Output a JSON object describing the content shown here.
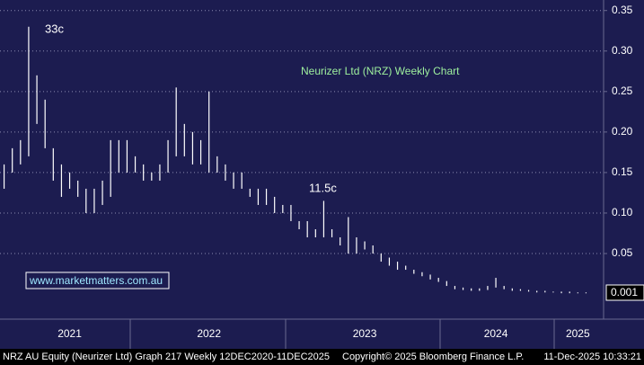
{
  "chart_data": {
    "type": "ohlc",
    "title": "Neurizer Ltd (NRZ) Weekly Chart",
    "annotations": [
      "33c",
      "11.5c"
    ],
    "watermark": "www.marketmatters.com.au",
    "last_price_label": "0.001",
    "footer_left": "NRZ AU Equity (Neurizer Ltd) Graph 217 Weekly 12DEC2020-11DEC2025",
    "footer_mid": "Copyright© 2025 Bloomberg Finance L.P.",
    "footer_right": "11-Dec-2025 10:33:21",
    "categories": [
      null,
      null,
      null,
      null,
      null,
      null,
      null,
      null,
      "2021",
      null,
      null,
      null,
      null,
      null,
      null,
      null,
      null,
      null,
      null,
      null,
      null,
      null,
      null,
      null,
      null,
      "2022",
      null,
      null,
      null,
      null,
      null,
      null,
      null,
      null,
      null,
      null,
      null,
      null,
      null,
      null,
      null,
      null,
      null,
      null,
      "2023",
      null,
      null,
      null,
      null,
      null,
      null,
      null,
      null,
      null,
      null,
      null,
      null,
      null,
      null,
      null,
      "2024",
      null,
      null,
      null,
      null,
      null,
      null,
      null,
      null,
      null,
      "2025",
      null
    ],
    "high": [
      0.16,
      0.18,
      0.19,
      0.33,
      0.27,
      0.24,
      0.18,
      0.16,
      0.15,
      0.14,
      0.13,
      0.13,
      0.14,
      0.19,
      0.19,
      0.19,
      0.17,
      0.16,
      0.15,
      0.16,
      0.19,
      0.255,
      0.21,
      0.2,
      0.19,
      0.25,
      0.17,
      0.16,
      0.15,
      0.15,
      0.13,
      0.13,
      0.13,
      0.12,
      0.11,
      0.11,
      0.09,
      0.09,
      0.08,
      0.115,
      0.08,
      0.07,
      0.095,
      0.07,
      0.065,
      0.06,
      0.05,
      0.045,
      0.04,
      0.035,
      0.03,
      0.027,
      0.024,
      0.02,
      0.016,
      0.01,
      0.008,
      0.007,
      0.007,
      0.01,
      0.02,
      0.01,
      0.007,
      0.006,
      0.005,
      0.004,
      0.004,
      0.003,
      0.003,
      0.003,
      0.002,
      0.002
    ],
    "low": [
      0.13,
      0.15,
      0.16,
      0.17,
      0.21,
      0.18,
      0.14,
      0.12,
      0.13,
      0.12,
      0.1,
      0.1,
      0.11,
      0.12,
      0.15,
      0.15,
      0.15,
      0.14,
      0.14,
      0.14,
      0.15,
      0.17,
      0.17,
      0.16,
      0.16,
      0.15,
      0.15,
      0.14,
      0.13,
      0.13,
      0.12,
      0.11,
      0.11,
      0.1,
      0.1,
      0.09,
      0.08,
      0.07,
      0.07,
      0.07,
      0.07,
      0.06,
      0.05,
      0.05,
      0.055,
      0.05,
      0.04,
      0.035,
      0.03,
      0.03,
      0.025,
      0.022,
      0.018,
      0.015,
      0.01,
      0.006,
      0.005,
      0.004,
      0.004,
      0.005,
      0.008,
      0.006,
      0.004,
      0.004,
      0.003,
      0.002,
      0.002,
      0.002,
      0.001,
      0.001,
      0.001,
      0.001
    ],
    "color": "#ffffff",
    "ylim": [
      -0.031,
      0.363
    ],
    "yticks": [
      {
        "value": 0.05,
        "label": "0.05"
      },
      {
        "value": 0.1,
        "label": "0.10"
      },
      {
        "value": 0.15,
        "label": "0.15"
      },
      {
        "value": 0.2,
        "label": "0.20"
      },
      {
        "value": 0.25,
        "label": "0.25"
      },
      {
        "value": 0.3,
        "label": "0.30"
      },
      {
        "value": 0.35,
        "label": "0.35"
      }
    ],
    "grid": true
  }
}
